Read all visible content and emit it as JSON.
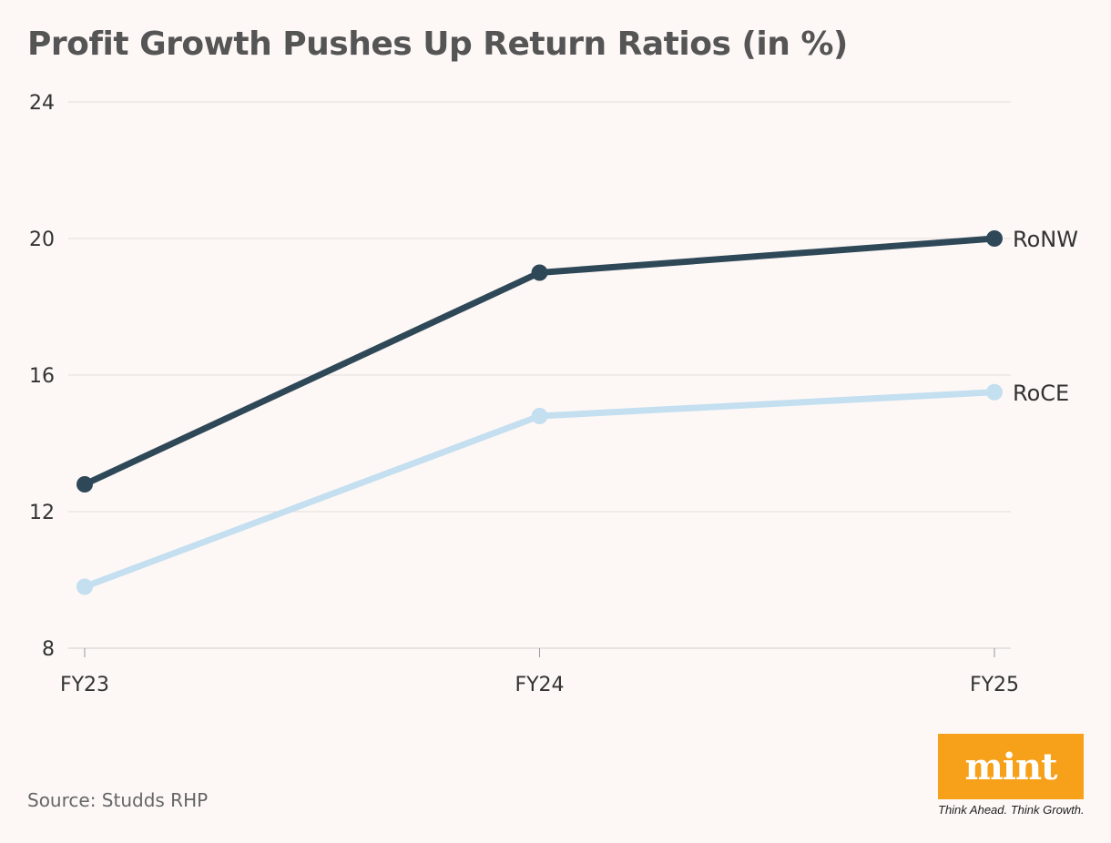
{
  "title": "Profit Growth Pushes Up Return Ratios (in %)",
  "source": "Source: Studds RHP",
  "logo": {
    "word": "mint",
    "tagline": "Think Ahead. Think Growth.",
    "color": "#f7a11a"
  },
  "chart_data": {
    "type": "line",
    "categories": [
      "FY23",
      "FY24",
      "FY25"
    ],
    "ylim": [
      8,
      24
    ],
    "yticks": [
      "8",
      "12",
      "16",
      "20",
      "24"
    ],
    "grid": true,
    "series": [
      {
        "name": "RoNW",
        "values": [
          12.8,
          19.0,
          20.0
        ],
        "color": "#2f4858"
      },
      {
        "name": "RoCE",
        "values": [
          9.8,
          14.8,
          15.5
        ],
        "color": "#c4dff0"
      }
    ]
  }
}
